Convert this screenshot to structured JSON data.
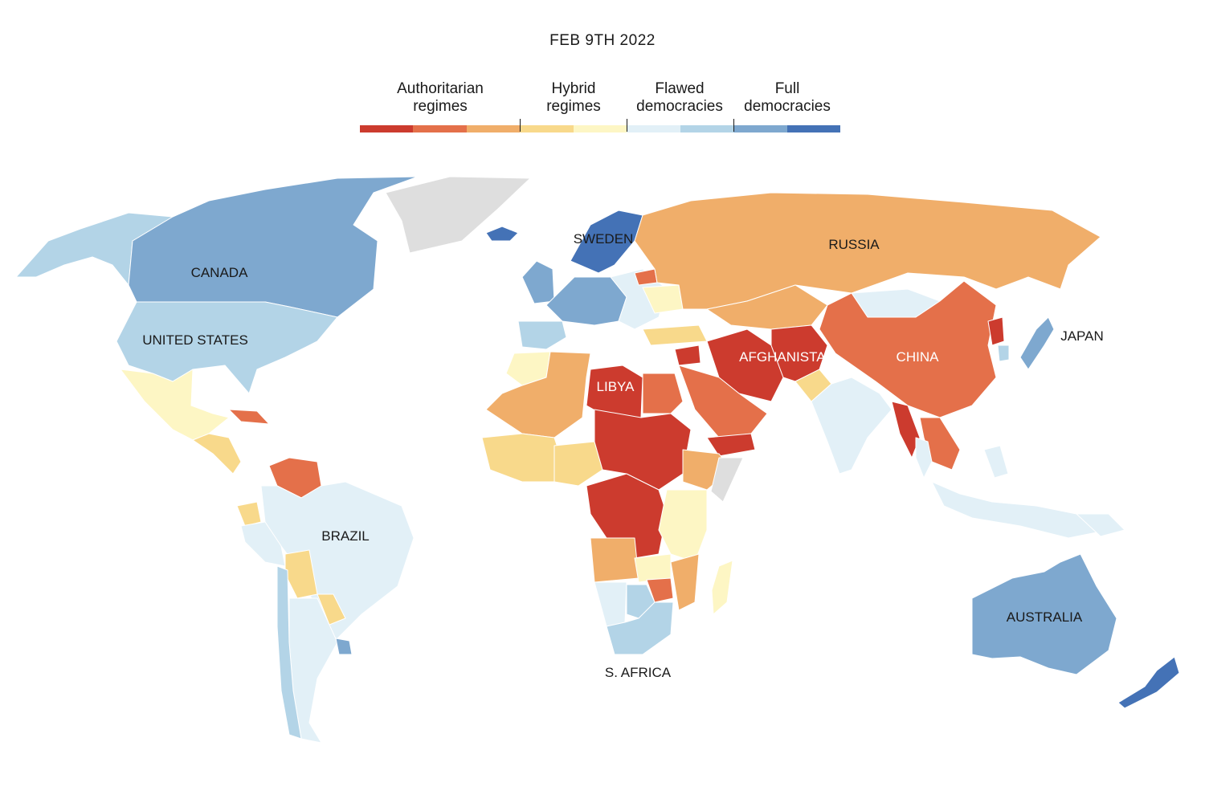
{
  "date_title": "FEB 9TH 2022",
  "legend": {
    "categories": [
      {
        "label": "Authoritarian\nregimes",
        "swatches": [
          "#cc3b2e",
          "#e4704a",
          "#f0ae6a"
        ]
      },
      {
        "label": "Hybrid\nregimes",
        "swatches": [
          "#f8d98b",
          "#fdf6c4"
        ]
      },
      {
        "label": "Flawed\ndemocracies",
        "swatches": [
          "#e2f0f7",
          "#b3d4e7"
        ]
      },
      {
        "label": "Full\ndemocracies",
        "swatches": [
          "#7ea8cf",
          "#4472b6"
        ]
      }
    ]
  },
  "colors": {
    "no_data": "#dedede",
    "auth_1": "#cc3b2e",
    "auth_2": "#e4704a",
    "auth_3": "#f0ae6a",
    "hybrid_1": "#f8d98b",
    "hybrid_2": "#fdf6c4",
    "flawed_1": "#e2f0f7",
    "flawed_2": "#b3d4e7",
    "full_1": "#7ea8cf",
    "full_2": "#4472b6"
  },
  "map_labels": {
    "canada": "CANADA",
    "united_states": "UNITED STATES",
    "brazil": "BRAZIL",
    "sweden": "SWEDEN",
    "russia": "RUSSIA",
    "libya": "LIBYA",
    "afghanistan": "AFGHANISTAN",
    "china": "CHINA",
    "japan": "JAPAN",
    "australia": "AUSTRALIA",
    "south_africa": "S. AFRICA"
  }
}
